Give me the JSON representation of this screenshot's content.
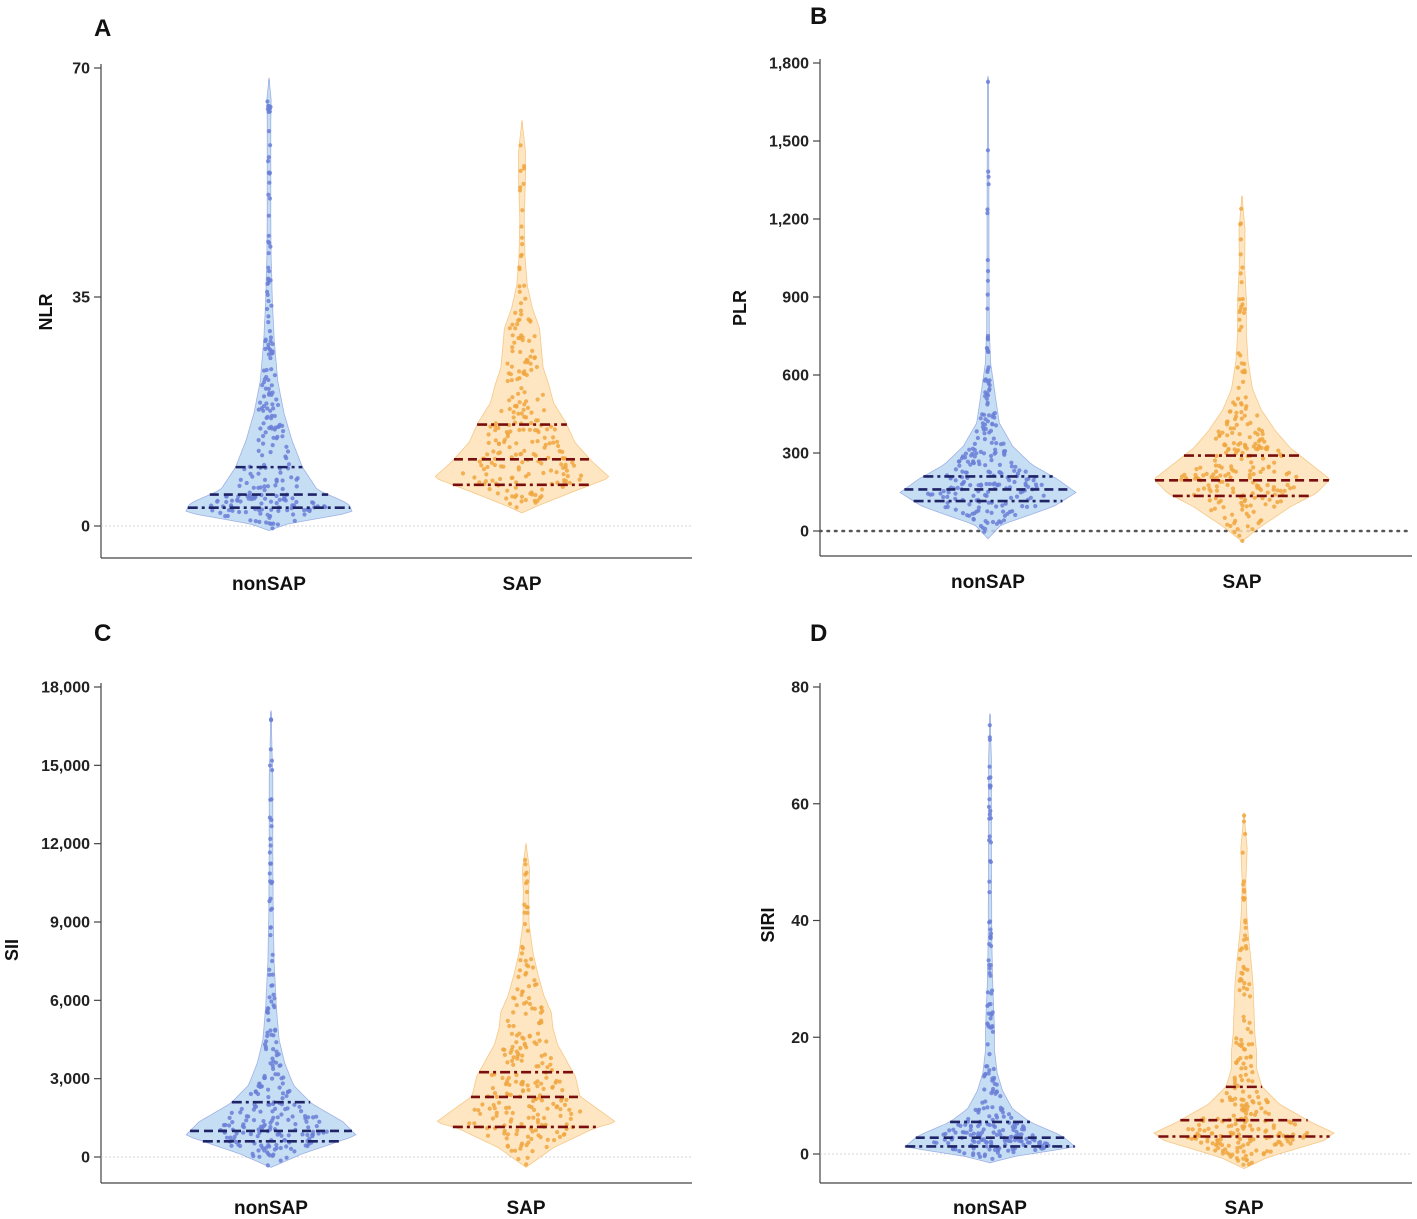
{
  "chart_data": [
    {
      "panel": "A",
      "type": "violin",
      "ylabel": "NLR",
      "ylim": [
        -4.7,
        70
      ],
      "yticks": [
        0,
        35,
        70
      ],
      "ytick_labels": [
        "0",
        "35",
        "70"
      ],
      "reference_line": {
        "y": 0,
        "style": "faint-dotted"
      },
      "categories": [
        "nonSAP",
        "SAP"
      ],
      "series": [
        {
          "name": "nonSAP",
          "color": "#6a7fd6",
          "fill": "#bcd8f2",
          "median": 4.8,
          "q1": 2.8,
          "q3": 9.0,
          "min": -0.7,
          "max": 68.5
        },
        {
          "name": "SAP",
          "color": "#f0a640",
          "fill": "#fde2b6",
          "median": 10.2,
          "q1": 6.3,
          "q3": 15.5,
          "min": 2.0,
          "max": 62.0
        }
      ]
    },
    {
      "panel": "B",
      "type": "violin",
      "ylabel": "PLR",
      "ylim": [
        -100,
        1800
      ],
      "yticks": [
        0,
        300,
        600,
        900,
        1200,
        1500,
        1800
      ],
      "ytick_labels": [
        "0",
        "300",
        "600",
        "900",
        "1,200",
        "1,500",
        "1,800"
      ],
      "reference_line": {
        "y": 0,
        "style": "bold-dotted"
      },
      "categories": [
        "nonSAP",
        "SAP"
      ],
      "series": [
        {
          "name": "nonSAP",
          "color": "#6a7fd6",
          "fill": "#bcd8f2",
          "median": 160,
          "q1": 115,
          "q3": 210,
          "min": -30,
          "max": 1750
        },
        {
          "name": "SAP",
          "color": "#f0a640",
          "fill": "#fde2b6",
          "median": 195,
          "q1": 135,
          "q3": 290,
          "min": -40,
          "max": 1290
        }
      ]
    },
    {
      "panel": "C",
      "type": "violin",
      "ylabel": "SII",
      "ylim": [
        -1000,
        18000
      ],
      "yticks": [
        0,
        3000,
        6000,
        9000,
        12000,
        15000,
        18000
      ],
      "ytick_labels": [
        "0",
        "3,000",
        "6,000",
        "9,000",
        "12,000",
        "15,000",
        "18,000"
      ],
      "reference_line": {
        "y": 0,
        "style": "faint-dotted"
      },
      "categories": [
        "nonSAP",
        "SAP"
      ],
      "series": [
        {
          "name": "nonSAP",
          "color": "#6a7fd6",
          "fill": "#bcd8f2",
          "median": 1000,
          "q1": 600,
          "q3": 2100,
          "min": -400,
          "max": 17100
        },
        {
          "name": "SAP",
          "color": "#f0a640",
          "fill": "#fde2b6",
          "median": 2300,
          "q1": 1150,
          "q3": 3250,
          "min": -400,
          "max": 12000
        }
      ]
    },
    {
      "panel": "D",
      "type": "violin",
      "ylabel": "SIRI",
      "ylim": [
        -5,
        80
      ],
      "yticks": [
        0,
        20,
        40,
        60,
        80
      ],
      "ytick_labels": [
        "0",
        "20",
        "40",
        "60",
        "80"
      ],
      "reference_line": {
        "y": 0,
        "style": "faint-dotted"
      },
      "categories": [
        "nonSAP",
        "SAP"
      ],
      "series": [
        {
          "name": "nonSAP",
          "color": "#6a7fd6",
          "fill": "#bcd8f2",
          "median": 2.8,
          "q1": 1.3,
          "q3": 5.5,
          "min": -1.5,
          "max": 75.5
        },
        {
          "name": "SAP",
          "color": "#f0a640",
          "fill": "#fde2b6",
          "median": 5.8,
          "q1": 3.0,
          "q3": 11.5,
          "min": -2.5,
          "max": 58.5
        }
      ]
    }
  ]
}
